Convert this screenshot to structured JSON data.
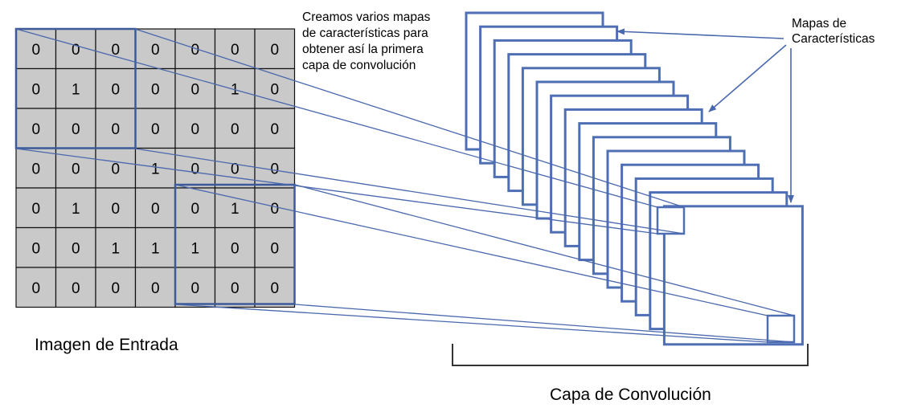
{
  "input": {
    "title": "Imagen de Entrada",
    "grid": [
      [
        0,
        0,
        0,
        0,
        0,
        0,
        0
      ],
      [
        0,
        1,
        0,
        0,
        0,
        1,
        0
      ],
      [
        0,
        0,
        0,
        0,
        0,
        0,
        0
      ],
      [
        0,
        0,
        0,
        1,
        0,
        0,
        0
      ],
      [
        0,
        1,
        0,
        0,
        0,
        1,
        0
      ],
      [
        0,
        0,
        1,
        1,
        1,
        0,
        0
      ],
      [
        0,
        0,
        0,
        0,
        0,
        0,
        0
      ]
    ]
  },
  "note": {
    "lines": [
      "Creamos varios mapas",
      "de características para",
      "obtener así la primera",
      "capa de convolución"
    ]
  },
  "maps_label": {
    "lines": [
      "Mapas de",
      "Características"
    ]
  },
  "convolution": {
    "title": "Capa de Convolución"
  },
  "colors": {
    "cell_fill": "#c9c9c9",
    "cell_border": "#111111",
    "accent": "#4a68ad",
    "frame_border": "#4f6fb5"
  }
}
